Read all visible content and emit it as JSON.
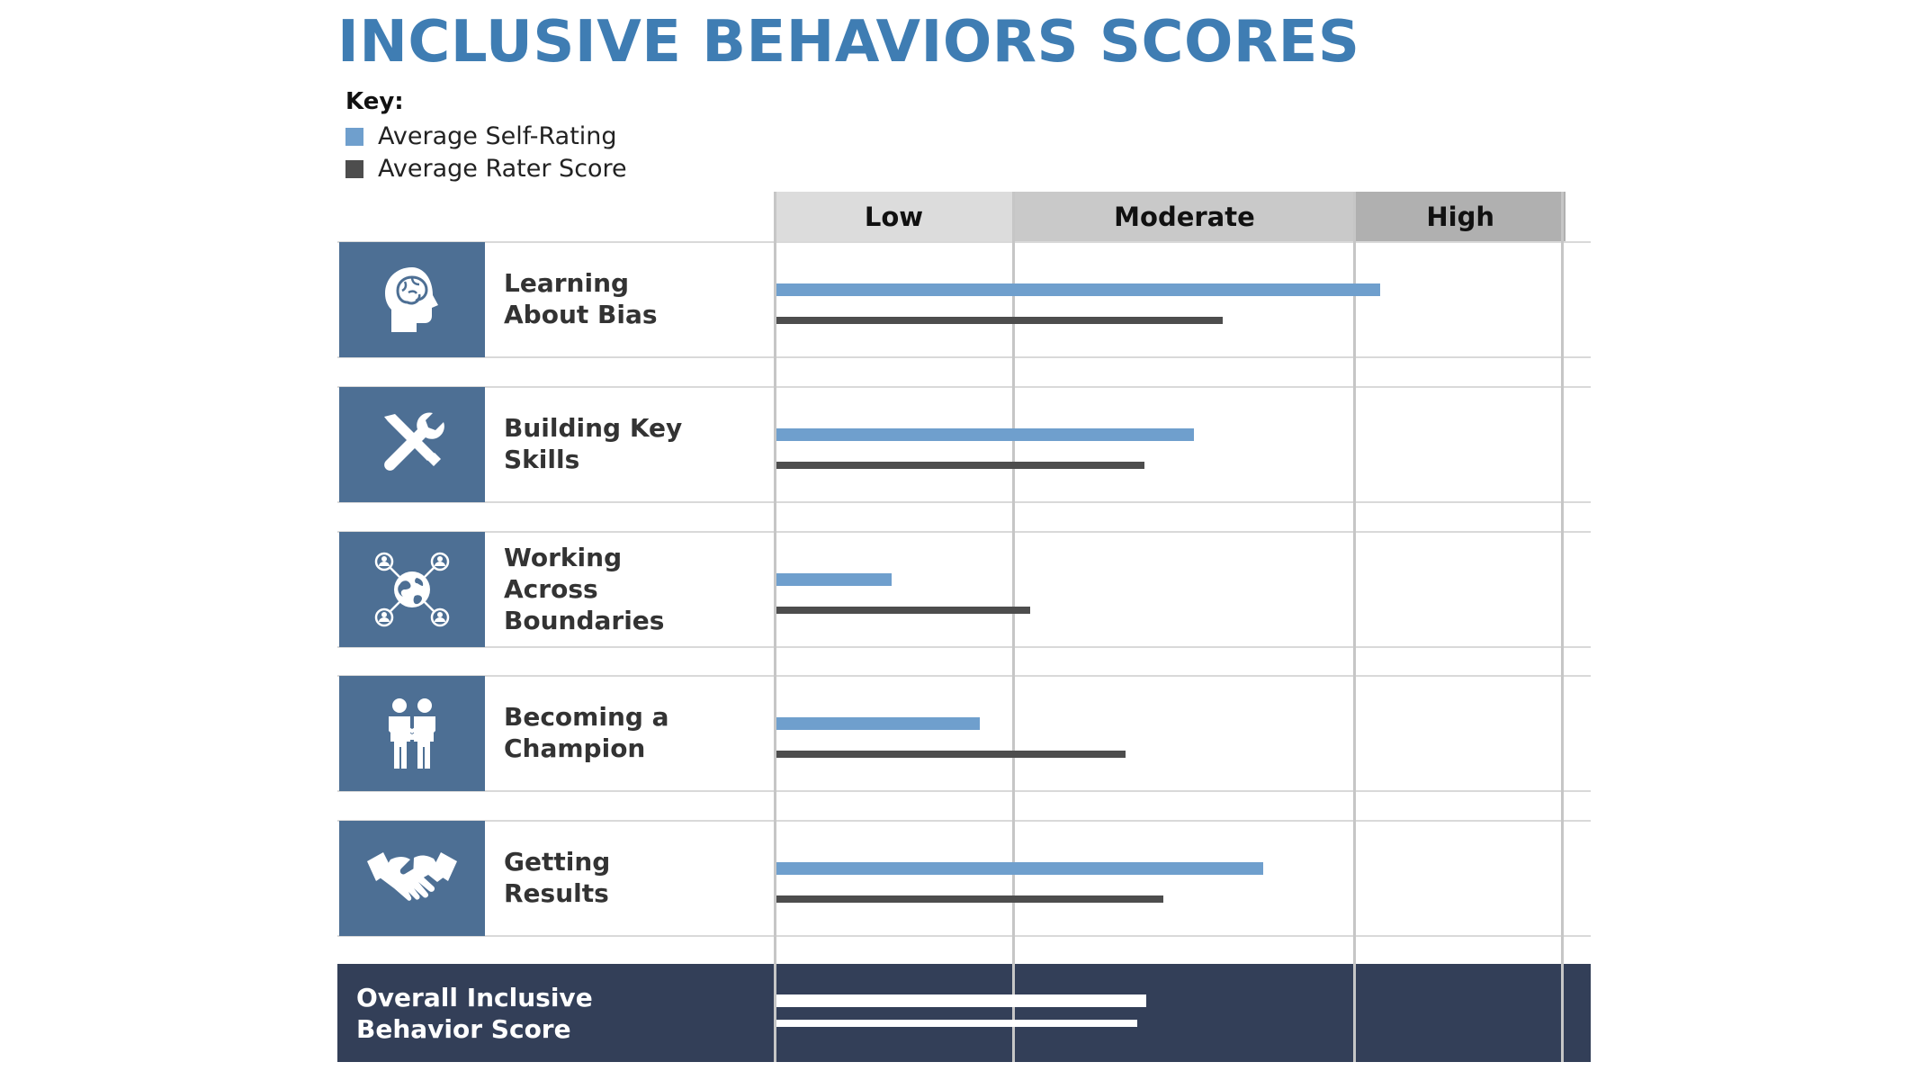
{
  "title": "INCLUSIVE BEHAVIORS SCORES",
  "legend": {
    "heading": "Key:",
    "items": [
      {
        "label": "Average Self-Rating",
        "color": "#6f9fcd"
      },
      {
        "label": "Average Rater Score",
        "color": "#4d4d4d"
      }
    ]
  },
  "chart_data": {
    "type": "bar",
    "orientation": "horizontal",
    "title": "INCLUSIVE BEHAVIORS SCORES",
    "bands": [
      {
        "label": "Low",
        "start": 0,
        "end": 1,
        "color": "#dcdcdc"
      },
      {
        "label": "Moderate",
        "start": 1,
        "end": 2.43,
        "color": "#c9c9c9"
      },
      {
        "label": "High",
        "start": 2.43,
        "end": 3.3,
        "color": "#b0b0b0"
      }
    ],
    "xlim": [
      0,
      3.4
    ],
    "categories": [
      "Learning About Bias",
      "Building Key Skills",
      "Working Across Boundaries",
      "Becoming a Champion",
      "Getting Results",
      "Overall Inclusive Behavior Score"
    ],
    "category_lines": [
      [
        "Learning",
        "About Bias"
      ],
      [
        "Building Key",
        "Skills"
      ],
      [
        "Working",
        "Across",
        "Boundaries"
      ],
      [
        "Becoming a",
        "Champion"
      ],
      [
        "Getting",
        "Results"
      ],
      [
        "Overall Inclusive",
        "Behavior Score"
      ]
    ],
    "icons": [
      "head-brain-icon",
      "tools-icon",
      "global-network-icon",
      "champions-icon",
      "handshake-icon",
      null
    ],
    "series": [
      {
        "name": "Average Self-Rating",
        "color": "#6f9fcd",
        "values": [
          2.54,
          1.76,
          0.49,
          0.86,
          2.05,
          1.56
        ]
      },
      {
        "name": "Average Rater Score",
        "color": "#4d4d4d",
        "values": [
          1.88,
          1.55,
          1.07,
          1.47,
          1.63,
          1.52
        ]
      }
    ],
    "overall_bar_color": "#ffffff",
    "grid": true,
    "legend_position": "top-left"
  }
}
